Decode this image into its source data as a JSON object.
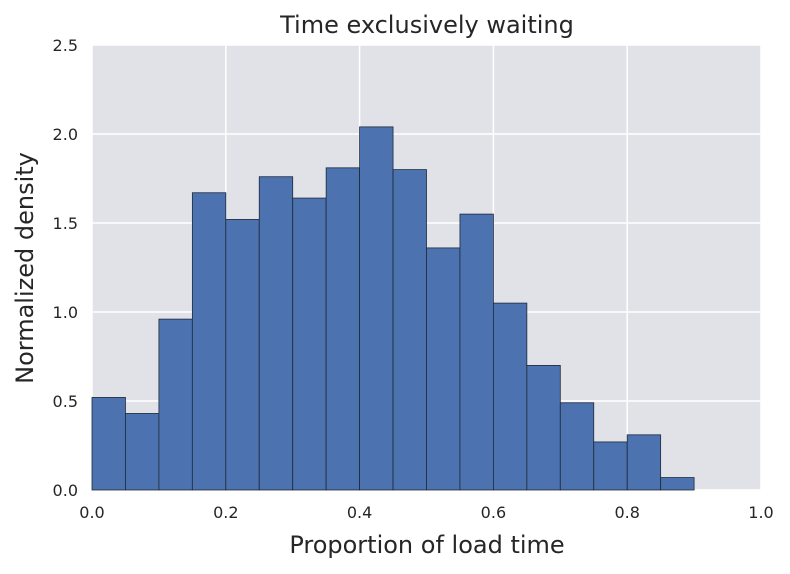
{
  "chart_data": {
    "type": "bar",
    "title": "Time exclusively waiting",
    "xlabel": "Proportion of load time",
    "ylabel": "Normalized density",
    "xlim": [
      0.0,
      1.0
    ],
    "ylim": [
      0.0,
      2.5
    ],
    "bin_width": 0.05,
    "bins": [
      {
        "x0": 0.0,
        "x1": 0.05,
        "value": 0.52
      },
      {
        "x0": 0.05,
        "x1": 0.1,
        "value": 0.43
      },
      {
        "x0": 0.1,
        "x1": 0.15,
        "value": 0.96
      },
      {
        "x0": 0.15,
        "x1": 0.2,
        "value": 1.67
      },
      {
        "x0": 0.2,
        "x1": 0.25,
        "value": 1.52
      },
      {
        "x0": 0.25,
        "x1": 0.3,
        "value": 1.76
      },
      {
        "x0": 0.3,
        "x1": 0.35,
        "value": 1.64
      },
      {
        "x0": 0.35,
        "x1": 0.4,
        "value": 1.81
      },
      {
        "x0": 0.4,
        "x1": 0.45,
        "value": 2.04
      },
      {
        "x0": 0.45,
        "x1": 0.5,
        "value": 1.8
      },
      {
        "x0": 0.5,
        "x1": 0.55,
        "value": 1.36
      },
      {
        "x0": 0.55,
        "x1": 0.6,
        "value": 1.55
      },
      {
        "x0": 0.6,
        "x1": 0.65,
        "value": 1.05
      },
      {
        "x0": 0.65,
        "x1": 0.7,
        "value": 0.7
      },
      {
        "x0": 0.7,
        "x1": 0.75,
        "value": 0.49
      },
      {
        "x0": 0.75,
        "x1": 0.8,
        "value": 0.27
      },
      {
        "x0": 0.8,
        "x1": 0.85,
        "value": 0.31
      },
      {
        "x0": 0.85,
        "x1": 0.9,
        "value": 0.07
      }
    ],
    "xticks": [
      {
        "value": 0.0,
        "label": "0.0"
      },
      {
        "value": 0.2,
        "label": "0.2"
      },
      {
        "value": 0.4,
        "label": "0.4"
      },
      {
        "value": 0.6,
        "label": "0.6"
      },
      {
        "value": 0.8,
        "label": "0.8"
      },
      {
        "value": 1.0,
        "label": "1.0"
      }
    ],
    "yticks": [
      {
        "value": 0.0,
        "label": "0.0"
      },
      {
        "value": 0.5,
        "label": "0.5"
      },
      {
        "value": 1.0,
        "label": "1.0"
      },
      {
        "value": 1.5,
        "label": "1.5"
      },
      {
        "value": 2.0,
        "label": "2.0"
      },
      {
        "value": 2.5,
        "label": "2.5"
      }
    ],
    "grid": true,
    "colors": {
      "bar_fill": "#4c72b0",
      "bar_edge": "#1f2a3a",
      "plot_background": "#e1e1e8",
      "grid": "#ffffff"
    }
  }
}
